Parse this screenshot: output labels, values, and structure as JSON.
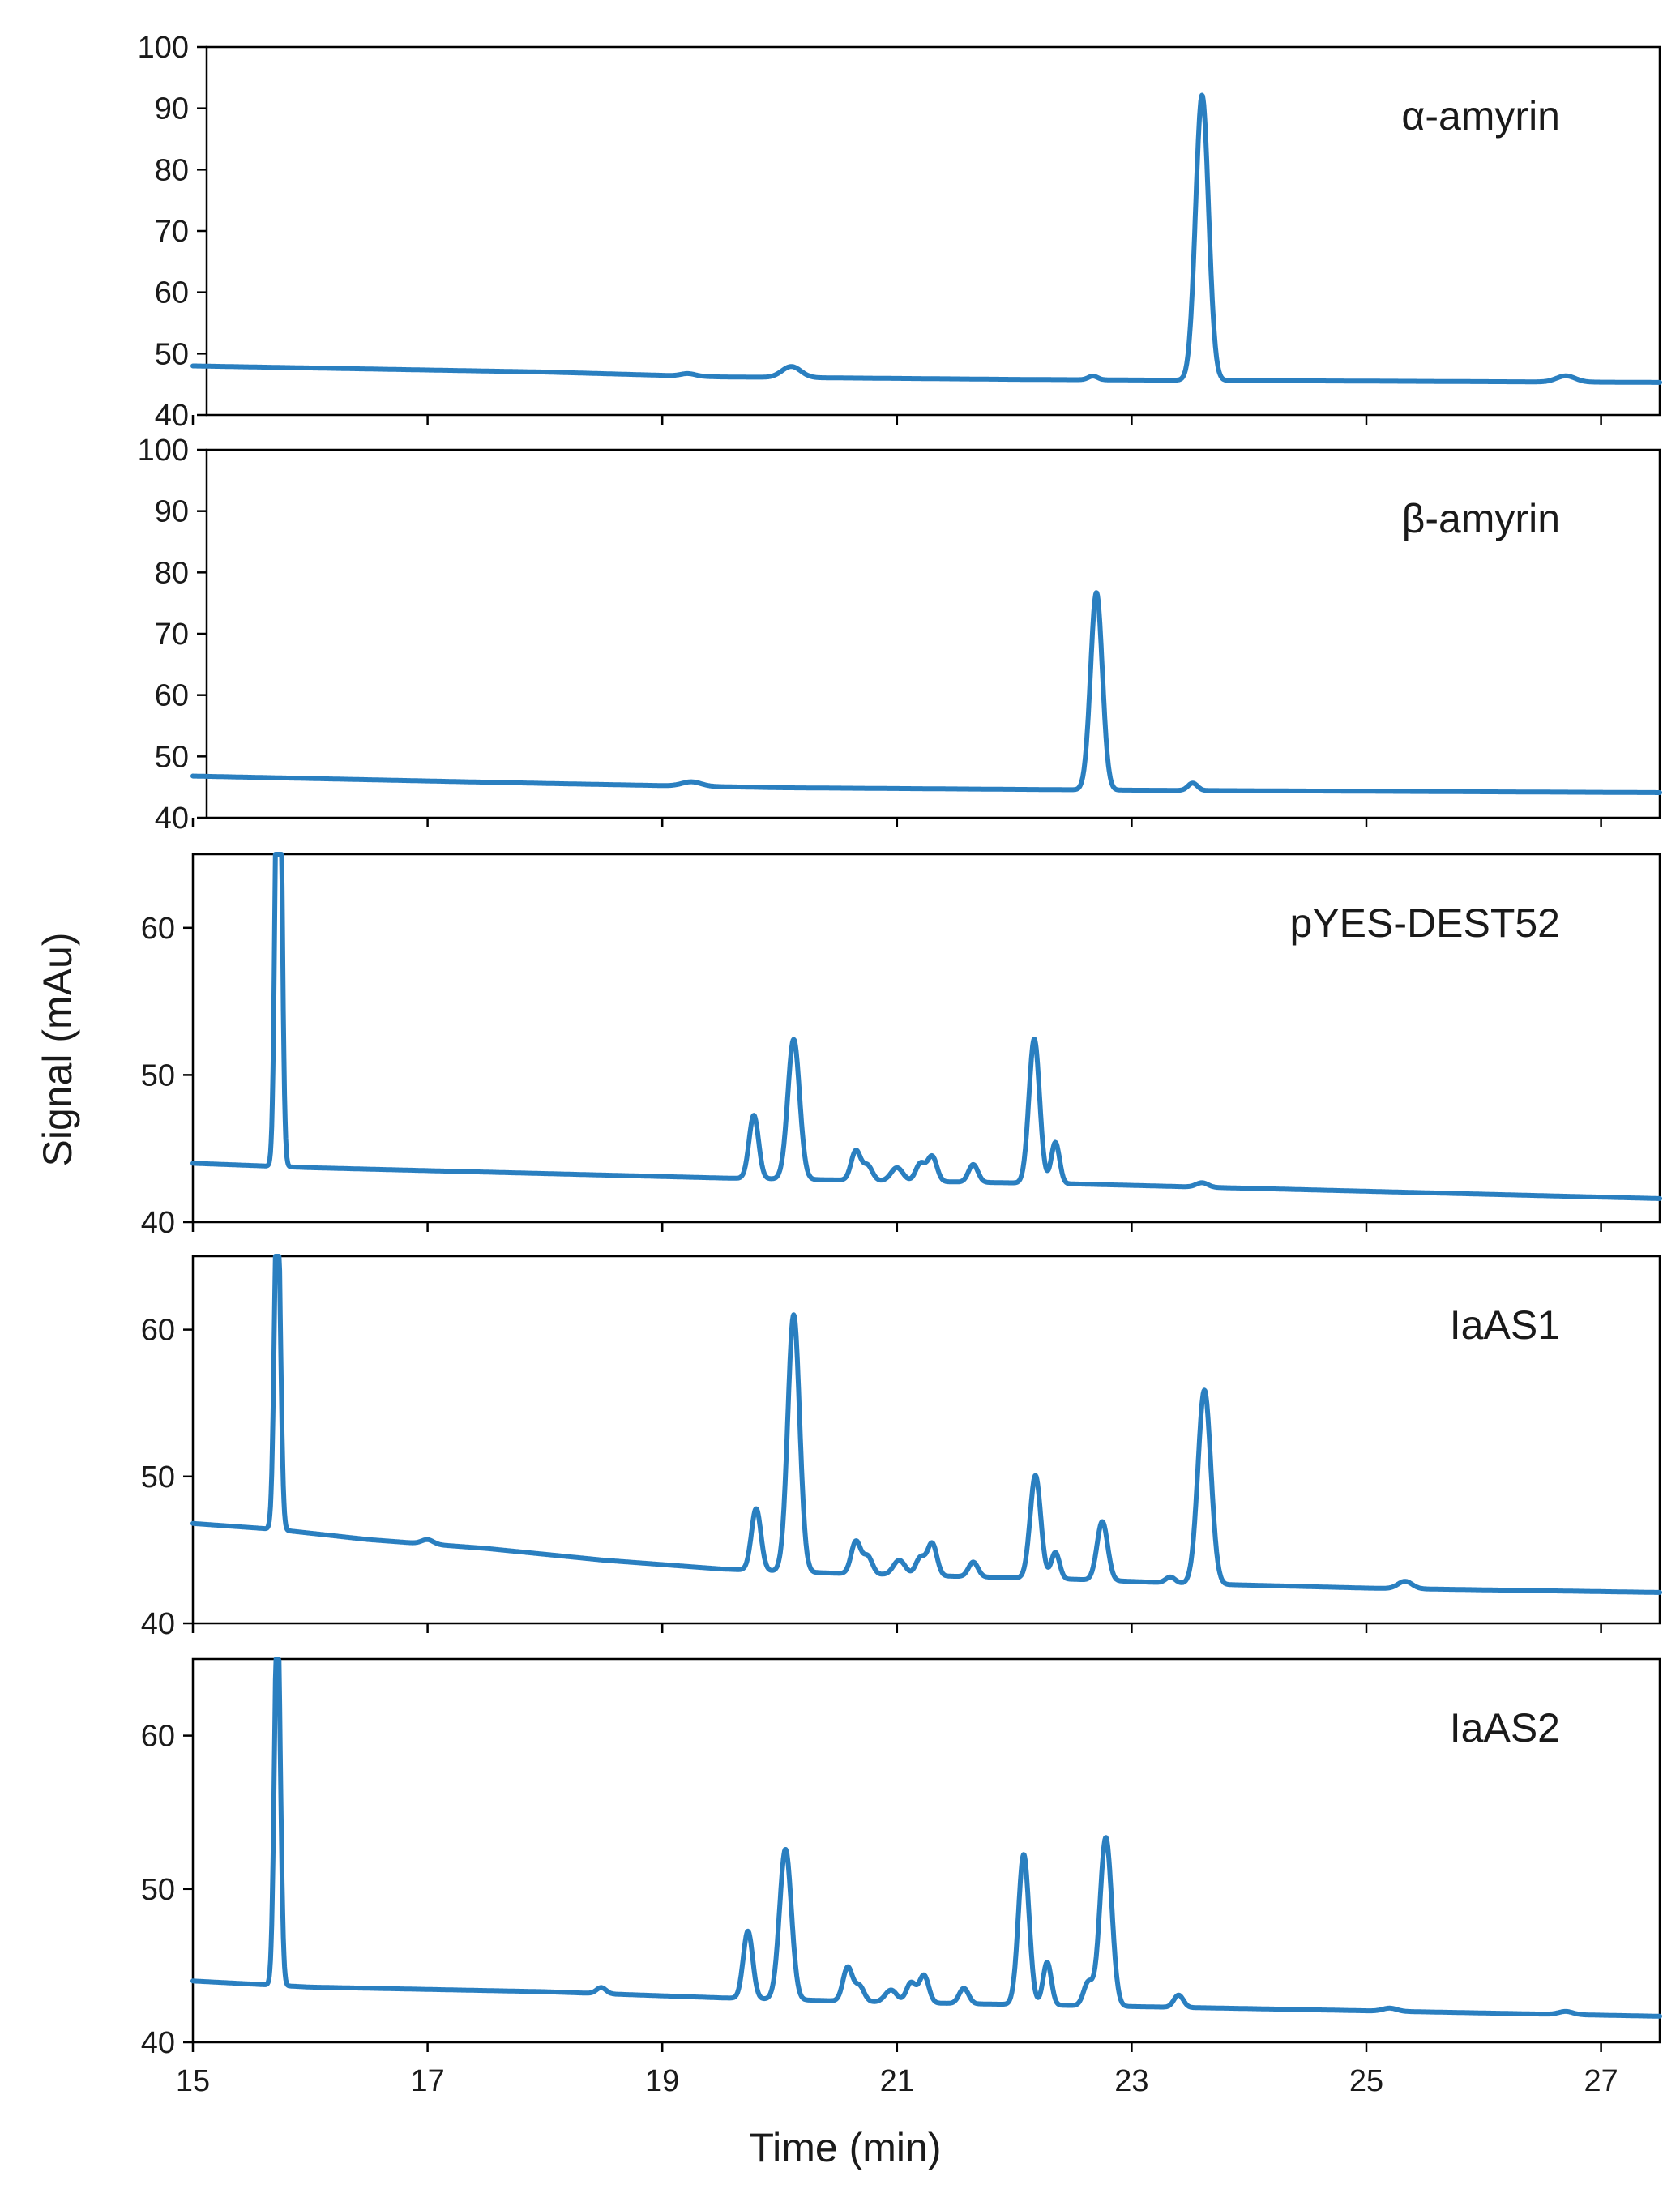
{
  "chart_data": {
    "type": "line",
    "ylabel": "Signal (mAu)",
    "xlabel": "Time (min)",
    "xlim": [
      15,
      27.5
    ],
    "xticks": [
      15,
      17,
      19,
      21,
      23,
      25,
      27
    ],
    "line_color": "#2a7fc0",
    "panels": [
      {
        "label": "α-amyrin",
        "ylim": [
          40,
          100
        ],
        "yticks": [
          40,
          50,
          60,
          70,
          80,
          90,
          100
        ],
        "baseline": [
          [
            15,
            48
          ],
          [
            18,
            47
          ],
          [
            19.5,
            46.2
          ],
          [
            22,
            45.8
          ],
          [
            24,
            45.6
          ],
          [
            27.5,
            45.3
          ]
        ],
        "peaks": [
          {
            "x": 19.22,
            "y": 0.4,
            "w": 0.06
          },
          {
            "x": 20.1,
            "y": 1.8,
            "w": 0.08
          },
          {
            "x": 22.67,
            "y": 0.6,
            "w": 0.04
          },
          {
            "x": 23.6,
            "y": 46.5,
            "w": 0.055
          },
          {
            "x": 26.7,
            "y": 1.0,
            "w": 0.08
          }
        ]
      },
      {
        "label": "β-amyrin",
        "ylim": [
          40,
          100
        ],
        "yticks": [
          40,
          50,
          60,
          70,
          80,
          90,
          100
        ],
        "baseline": [
          [
            15,
            46.8
          ],
          [
            18,
            45.6
          ],
          [
            20,
            44.9
          ],
          [
            23,
            44.5
          ],
          [
            27.5,
            44.1
          ]
        ],
        "peaks": [
          {
            "x": 19.25,
            "y": 0.7,
            "w": 0.08
          },
          {
            "x": 22.7,
            "y": 32.2,
            "w": 0.05
          },
          {
            "x": 23.52,
            "y": 1.2,
            "w": 0.04
          }
        ]
      },
      {
        "label": "pYES-DEST52",
        "ylim": [
          40,
          65
        ],
        "yticks": [
          40,
          50,
          60
        ],
        "baseline": [
          [
            15,
            44.0
          ],
          [
            16,
            43.7
          ],
          [
            18,
            43.3
          ],
          [
            19.5,
            43.0
          ],
          [
            21,
            42.8
          ],
          [
            22.5,
            42.6
          ],
          [
            24,
            42.3
          ],
          [
            27.5,
            41.6
          ]
        ],
        "peaks": [
          {
            "x": 15.73,
            "y": 40,
            "w": 0.025
          },
          {
            "x": 19.78,
            "y": 4.3,
            "w": 0.04
          },
          {
            "x": 20.12,
            "y": 9.5,
            "w": 0.05
          },
          {
            "x": 20.65,
            "y": 2.0,
            "w": 0.04
          },
          {
            "x": 20.75,
            "y": 1.0,
            "w": 0.04
          },
          {
            "x": 21.0,
            "y": 0.9,
            "w": 0.05
          },
          {
            "x": 21.2,
            "y": 1.2,
            "w": 0.04
          },
          {
            "x": 21.3,
            "y": 1.7,
            "w": 0.04
          },
          {
            "x": 21.65,
            "y": 1.2,
            "w": 0.04
          },
          {
            "x": 22.17,
            "y": 9.8,
            "w": 0.045
          },
          {
            "x": 22.35,
            "y": 2.8,
            "w": 0.035
          },
          {
            "x": 23.6,
            "y": 0.3,
            "w": 0.05
          }
        ]
      },
      {
        "label": "IaAS1",
        "ylim": [
          40,
          65
        ],
        "yticks": [
          40,
          50,
          60
        ],
        "baseline": [
          [
            15,
            46.8
          ],
          [
            15.7,
            46.4
          ],
          [
            16.5,
            45.7
          ],
          [
            17.5,
            45.1
          ],
          [
            18.5,
            44.3
          ],
          [
            19.5,
            43.7
          ],
          [
            20.5,
            43.4
          ],
          [
            21.5,
            43.2
          ],
          [
            22.5,
            43.0
          ],
          [
            23.5,
            42.7
          ],
          [
            25,
            42.4
          ],
          [
            27.5,
            42.1
          ]
        ],
        "peaks": [
          {
            "x": 15.72,
            "y": 24,
            "w": 0.025
          },
          {
            "x": 17.0,
            "y": 0.3,
            "w": 0.05
          },
          {
            "x": 19.8,
            "y": 4.2,
            "w": 0.04
          },
          {
            "x": 20.12,
            "y": 17.5,
            "w": 0.05
          },
          {
            "x": 20.65,
            "y": 2.2,
            "w": 0.04
          },
          {
            "x": 20.75,
            "y": 1.2,
            "w": 0.04
          },
          {
            "x": 21.02,
            "y": 1.0,
            "w": 0.05
          },
          {
            "x": 21.2,
            "y": 1.2,
            "w": 0.04
          },
          {
            "x": 21.3,
            "y": 2.2,
            "w": 0.04
          },
          {
            "x": 21.65,
            "y": 1.0,
            "w": 0.04
          },
          {
            "x": 22.18,
            "y": 7.0,
            "w": 0.045
          },
          {
            "x": 22.35,
            "y": 1.8,
            "w": 0.035
          },
          {
            "x": 22.75,
            "y": 4.0,
            "w": 0.045
          },
          {
            "x": 23.33,
            "y": 0.4,
            "w": 0.04
          },
          {
            "x": 23.62,
            "y": 13.2,
            "w": 0.055
          },
          {
            "x": 25.33,
            "y": 0.5,
            "w": 0.06
          }
        ]
      },
      {
        "label": "IaAS2",
        "ylim": [
          40,
          65
        ],
        "yticks": [
          40,
          50,
          60
        ],
        "baseline": [
          [
            15,
            44.0
          ],
          [
            16,
            43.6
          ],
          [
            18,
            43.3
          ],
          [
            19.5,
            42.9
          ],
          [
            21,
            42.6
          ],
          [
            22.5,
            42.4
          ],
          [
            24,
            42.2
          ],
          [
            27.5,
            41.7
          ]
        ],
        "peaks": [
          {
            "x": 15.72,
            "y": 25,
            "w": 0.025
          },
          {
            "x": 18.48,
            "y": 0.4,
            "w": 0.04
          },
          {
            "x": 19.73,
            "y": 4.4,
            "w": 0.04
          },
          {
            "x": 20.05,
            "y": 9.8,
            "w": 0.05
          },
          {
            "x": 20.58,
            "y": 2.2,
            "w": 0.04
          },
          {
            "x": 20.68,
            "y": 1.0,
            "w": 0.04
          },
          {
            "x": 20.95,
            "y": 0.8,
            "w": 0.05
          },
          {
            "x": 21.12,
            "y": 1.3,
            "w": 0.04
          },
          {
            "x": 21.23,
            "y": 1.8,
            "w": 0.04
          },
          {
            "x": 21.57,
            "y": 1.0,
            "w": 0.04
          },
          {
            "x": 22.08,
            "y": 9.8,
            "w": 0.045
          },
          {
            "x": 22.28,
            "y": 2.8,
            "w": 0.035
          },
          {
            "x": 22.63,
            "y": 1.5,
            "w": 0.04
          },
          {
            "x": 22.78,
            "y": 11.0,
            "w": 0.05
          },
          {
            "x": 23.4,
            "y": 0.8,
            "w": 0.04
          },
          {
            "x": 25.2,
            "y": 0.2,
            "w": 0.06
          },
          {
            "x": 26.7,
            "y": 0.2,
            "w": 0.06
          }
        ]
      }
    ]
  }
}
